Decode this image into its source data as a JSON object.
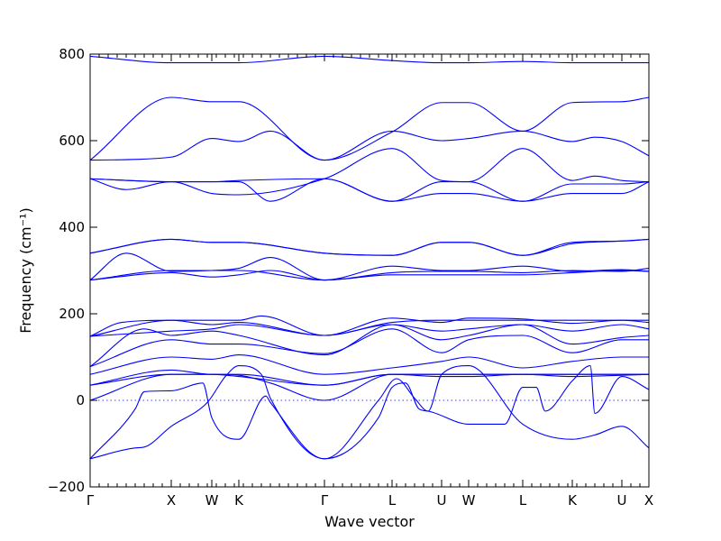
{
  "chart_data": {
    "type": "line",
    "xlabel": "Wave vector",
    "ylabel": "Frequency (cm⁻¹)",
    "ylim": [
      -200,
      800
    ],
    "yticks": [
      -200,
      0,
      200,
      400,
      600,
      800
    ],
    "grid": false,
    "legend": "none",
    "color": "#0000ff",
    "zero_line": {
      "y": 0,
      "style": "dotted"
    },
    "x_range": [
      0,
      62
    ],
    "kpoints": [
      {
        "label": "Γ",
        "x": 0
      },
      {
        "label": "X",
        "x": 9
      },
      {
        "label": "W",
        "x": 13.5
      },
      {
        "label": "K",
        "x": 16.5
      },
      {
        "label": "Γ",
        "x": 26
      },
      {
        "label": "L",
        "x": 33.5
      },
      {
        "label": "U",
        "x": 39
      },
      {
        "label": "W",
        "x": 42
      },
      {
        "label": "L",
        "x": 48
      },
      {
        "label": "K",
        "x": 53.5
      },
      {
        "label": "U",
        "x": 59
      },
      {
        "label": "X",
        "x": 62
      }
    ],
    "series": [
      {
        "x": [
          0,
          9,
          13.5,
          16.5,
          26,
          33.5,
          39,
          42,
          48,
          53.5,
          59,
          62
        ],
        "values": [
          795,
          780,
          780,
          780,
          795,
          785,
          780,
          780,
          783,
          780,
          780,
          780
        ]
      },
      {
        "x": [
          0,
          9,
          13.5,
          16.5,
          26,
          33.5,
          39,
          42,
          48,
          53.5,
          59,
          62
        ],
        "values": [
          555,
          700,
          690,
          690,
          555,
          620,
          688,
          688,
          622,
          688,
          690,
          700
        ]
      },
      {
        "x": [
          0,
          9,
          13.5,
          16.5,
          20,
          26,
          33.5,
          39,
          42,
          48,
          53.5,
          56,
          59,
          62
        ],
        "values": [
          555,
          562,
          605,
          598,
          622,
          555,
          622,
          600,
          605,
          622,
          598,
          608,
          598,
          565
        ]
      },
      {
        "x": [
          0,
          4,
          9,
          13.5,
          16.5,
          26,
          33.5,
          39,
          42,
          48,
          53.5,
          56,
          59,
          62
        ],
        "values": [
          512,
          487,
          505,
          478,
          475,
          512,
          582,
          508,
          505,
          582,
          508,
          518,
          508,
          505
        ]
      },
      {
        "x": [
          0,
          9,
          13.5,
          16.5,
          20,
          26,
          33.5,
          39,
          42,
          48,
          53.5,
          59,
          62
        ],
        "values": [
          512,
          505,
          505,
          505,
          460,
          512,
          460,
          478,
          478,
          460,
          478,
          478,
          505
        ]
      },
      {
        "x": [
          0,
          9,
          13.5,
          16.5,
          26,
          33.5,
          39,
          42,
          48,
          53.5,
          59,
          62
        ],
        "values": [
          512,
          505,
          505,
          508,
          512,
          460,
          505,
          505,
          460,
          500,
          500,
          505
        ]
      },
      {
        "x": [
          0,
          9,
          13.5,
          16.5,
          26,
          33.5,
          39,
          42,
          48,
          53.5,
          59,
          62
        ],
        "values": [
          340,
          372,
          365,
          365,
          340,
          335,
          365,
          365,
          335,
          365,
          368,
          372
        ]
      },
      {
        "x": [
          0,
          9,
          13.5,
          16.5,
          26,
          33.5,
          39,
          42,
          48,
          53.5,
          59,
          62
        ],
        "values": [
          340,
          372,
          365,
          365,
          340,
          335,
          365,
          365,
          335,
          362,
          368,
          372
        ]
      },
      {
        "x": [
          0,
          4,
          9,
          13.5,
          16.5,
          20,
          26,
          33.5,
          39,
          42,
          48,
          53.5,
          59,
          62
        ],
        "values": [
          278,
          340,
          298,
          300,
          305,
          330,
          278,
          310,
          300,
          300,
          310,
          298,
          302,
          298
        ]
      },
      {
        "x": [
          0,
          9,
          13.5,
          16.5,
          20,
          26,
          33.5,
          39,
          42,
          48,
          53.5,
          59,
          62
        ],
        "values": [
          278,
          295,
          285,
          290,
          300,
          278,
          290,
          290,
          290,
          290,
          295,
          300,
          298
        ]
      },
      {
        "x": [
          0,
          9,
          13.5,
          16.5,
          26,
          33.5,
          39,
          42,
          48,
          53.5,
          59,
          62
        ],
        "values": [
          278,
          300,
          300,
          300,
          278,
          295,
          298,
          298,
          295,
          300,
          298,
          305
        ]
      },
      {
        "x": [
          0,
          3.5,
          9,
          13.5,
          16.5,
          19,
          26,
          33.5,
          39,
          42,
          48,
          53.5,
          59,
          62
        ],
        "values": [
          148,
          180,
          185,
          185,
          185,
          195,
          150,
          180,
          185,
          185,
          185,
          185,
          185,
          185
        ]
      },
      {
        "x": [
          0,
          9,
          13.5,
          16.5,
          26,
          33.5,
          39,
          42,
          48,
          53.5,
          59,
          62
        ],
        "values": [
          148,
          185,
          175,
          180,
          150,
          190,
          180,
          190,
          188,
          178,
          185,
          180
        ]
      },
      {
        "x": [
          0,
          9,
          13.5,
          16.5,
          26,
          33.5,
          39,
          42,
          48,
          53.5,
          59,
          62
        ],
        "values": [
          148,
          160,
          165,
          175,
          150,
          175,
          160,
          165,
          175,
          160,
          175,
          165
        ]
      },
      {
        "x": [
          0,
          6,
          9,
          13.5,
          16.5,
          26,
          33.5,
          39,
          42,
          48,
          53.5,
          59,
          62
        ],
        "values": [
          78,
          165,
          150,
          160,
          150,
          105,
          175,
          140,
          150,
          175,
          130,
          145,
          150
        ]
      },
      {
        "x": [
          0,
          9,
          13.5,
          16.5,
          26,
          33.5,
          39,
          42,
          48,
          53.5,
          59,
          62
        ],
        "values": [
          78,
          140,
          130,
          130,
          108,
          165,
          110,
          140,
          150,
          110,
          140,
          140
        ]
      },
      {
        "x": [
          0,
          9,
          13.5,
          16.5,
          26,
          33.5,
          39,
          42,
          48,
          53.5,
          59,
          62
        ],
        "values": [
          60,
          100,
          95,
          105,
          60,
          75,
          90,
          100,
          75,
          90,
          100,
          100
        ]
      },
      {
        "x": [
          0,
          9,
          13.5,
          16.5,
          26,
          33.5,
          39,
          42,
          48,
          53.5,
          59,
          62
        ],
        "values": [
          35,
          70,
          60,
          60,
          35,
          60,
          60,
          60,
          60,
          60,
          60,
          60
        ]
      },
      {
        "x": [
          0,
          9,
          13.5,
          16.5,
          26,
          33.5,
          39,
          42,
          48,
          53.5,
          59,
          62
        ],
        "values": [
          35,
          60,
          60,
          55,
          35,
          60,
          55,
          55,
          60,
          55,
          58,
          60
        ]
      },
      {
        "x": [
          0,
          5,
          6,
          9,
          13,
          15,
          16.5,
          19,
          20,
          26,
          32,
          34,
          36,
          37.5,
          39,
          42,
          48,
          53.5,
          56,
          59,
          62
        ],
        "values": [
          -135,
          -110,
          -108,
          -60,
          -5,
          55,
          80,
          60,
          5,
          -135,
          0,
          50,
          5,
          -25,
          60,
          80,
          -55,
          -90,
          -80,
          -60,
          -110
        ]
      },
      {
        "x": [
          0,
          5,
          6,
          9,
          12.5,
          13.5,
          16.5,
          19.5,
          20,
          26,
          32,
          33.5,
          35,
          36.5,
          37.5,
          42,
          46,
          48,
          49.5,
          50.5,
          53.5,
          55.5,
          56,
          59,
          62
        ],
        "values": [
          -135,
          -20,
          20,
          22,
          40,
          -40,
          -90,
          10,
          -5,
          -135,
          -40,
          30,
          40,
          -20,
          -25,
          -55,
          -55,
          30,
          30,
          -25,
          45,
          80,
          -30,
          55,
          25
        ]
      },
      {
        "x": [
          0,
          9,
          13.5,
          16.5,
          20,
          26,
          33.5,
          39,
          42,
          48,
          53.5,
          59,
          62
        ],
        "values": [
          0,
          60,
          60,
          58,
          40,
          0,
          60,
          60,
          60,
          60,
          60,
          60,
          60
        ]
      }
    ]
  }
}
